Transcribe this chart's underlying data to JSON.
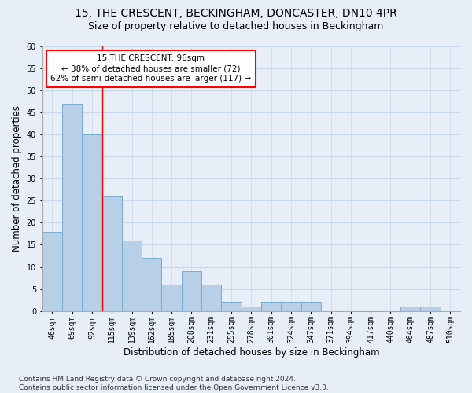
{
  "title_line1": "15, THE CRESCENT, BECKINGHAM, DONCASTER, DN10 4PR",
  "title_line2": "Size of property relative to detached houses in Beckingham",
  "xlabel": "Distribution of detached houses by size in Beckingham",
  "ylabel": "Number of detached properties",
  "footnote": "Contains HM Land Registry data © Crown copyright and database right 2024.\nContains public sector information licensed under the Open Government Licence v3.0.",
  "categories": [
    "46sqm",
    "69sqm",
    "92sqm",
    "115sqm",
    "139sqm",
    "162sqm",
    "185sqm",
    "208sqm",
    "231sqm",
    "255sqm",
    "278sqm",
    "301sqm",
    "324sqm",
    "347sqm",
    "371sqm",
    "394sqm",
    "417sqm",
    "440sqm",
    "464sqm",
    "487sqm",
    "510sqm"
  ],
  "values": [
    18,
    47,
    40,
    26,
    16,
    12,
    6,
    9,
    6,
    2,
    1,
    2,
    2,
    2,
    0,
    0,
    0,
    0,
    1,
    1,
    0
  ],
  "bar_color": "#b8cfe8",
  "bar_edge_color": "#7aaad0",
  "bar_linewidth": 0.7,
  "annotation_text": "15 THE CRESCENT: 96sqm\n← 38% of detached houses are smaller (72)\n62% of semi-detached houses are larger (117) →",
  "annotation_box_color": "white",
  "annotation_box_edge_color": "red",
  "vline_color": "red",
  "vline_linewidth": 1.0,
  "vline_bin": 2,
  "ylim": [
    0,
    60
  ],
  "yticks": [
    0,
    5,
    10,
    15,
    20,
    25,
    30,
    35,
    40,
    45,
    50,
    55,
    60
  ],
  "grid_color": "#c8d8ec",
  "background_color": "#e8eef8",
  "plot_bg_color": "#e8eef8",
  "title_fontsize": 10,
  "subtitle_fontsize": 9,
  "tick_fontsize": 7,
  "label_fontsize": 8.5,
  "annotation_fontsize": 7.5,
  "footnote_fontsize": 6.5
}
